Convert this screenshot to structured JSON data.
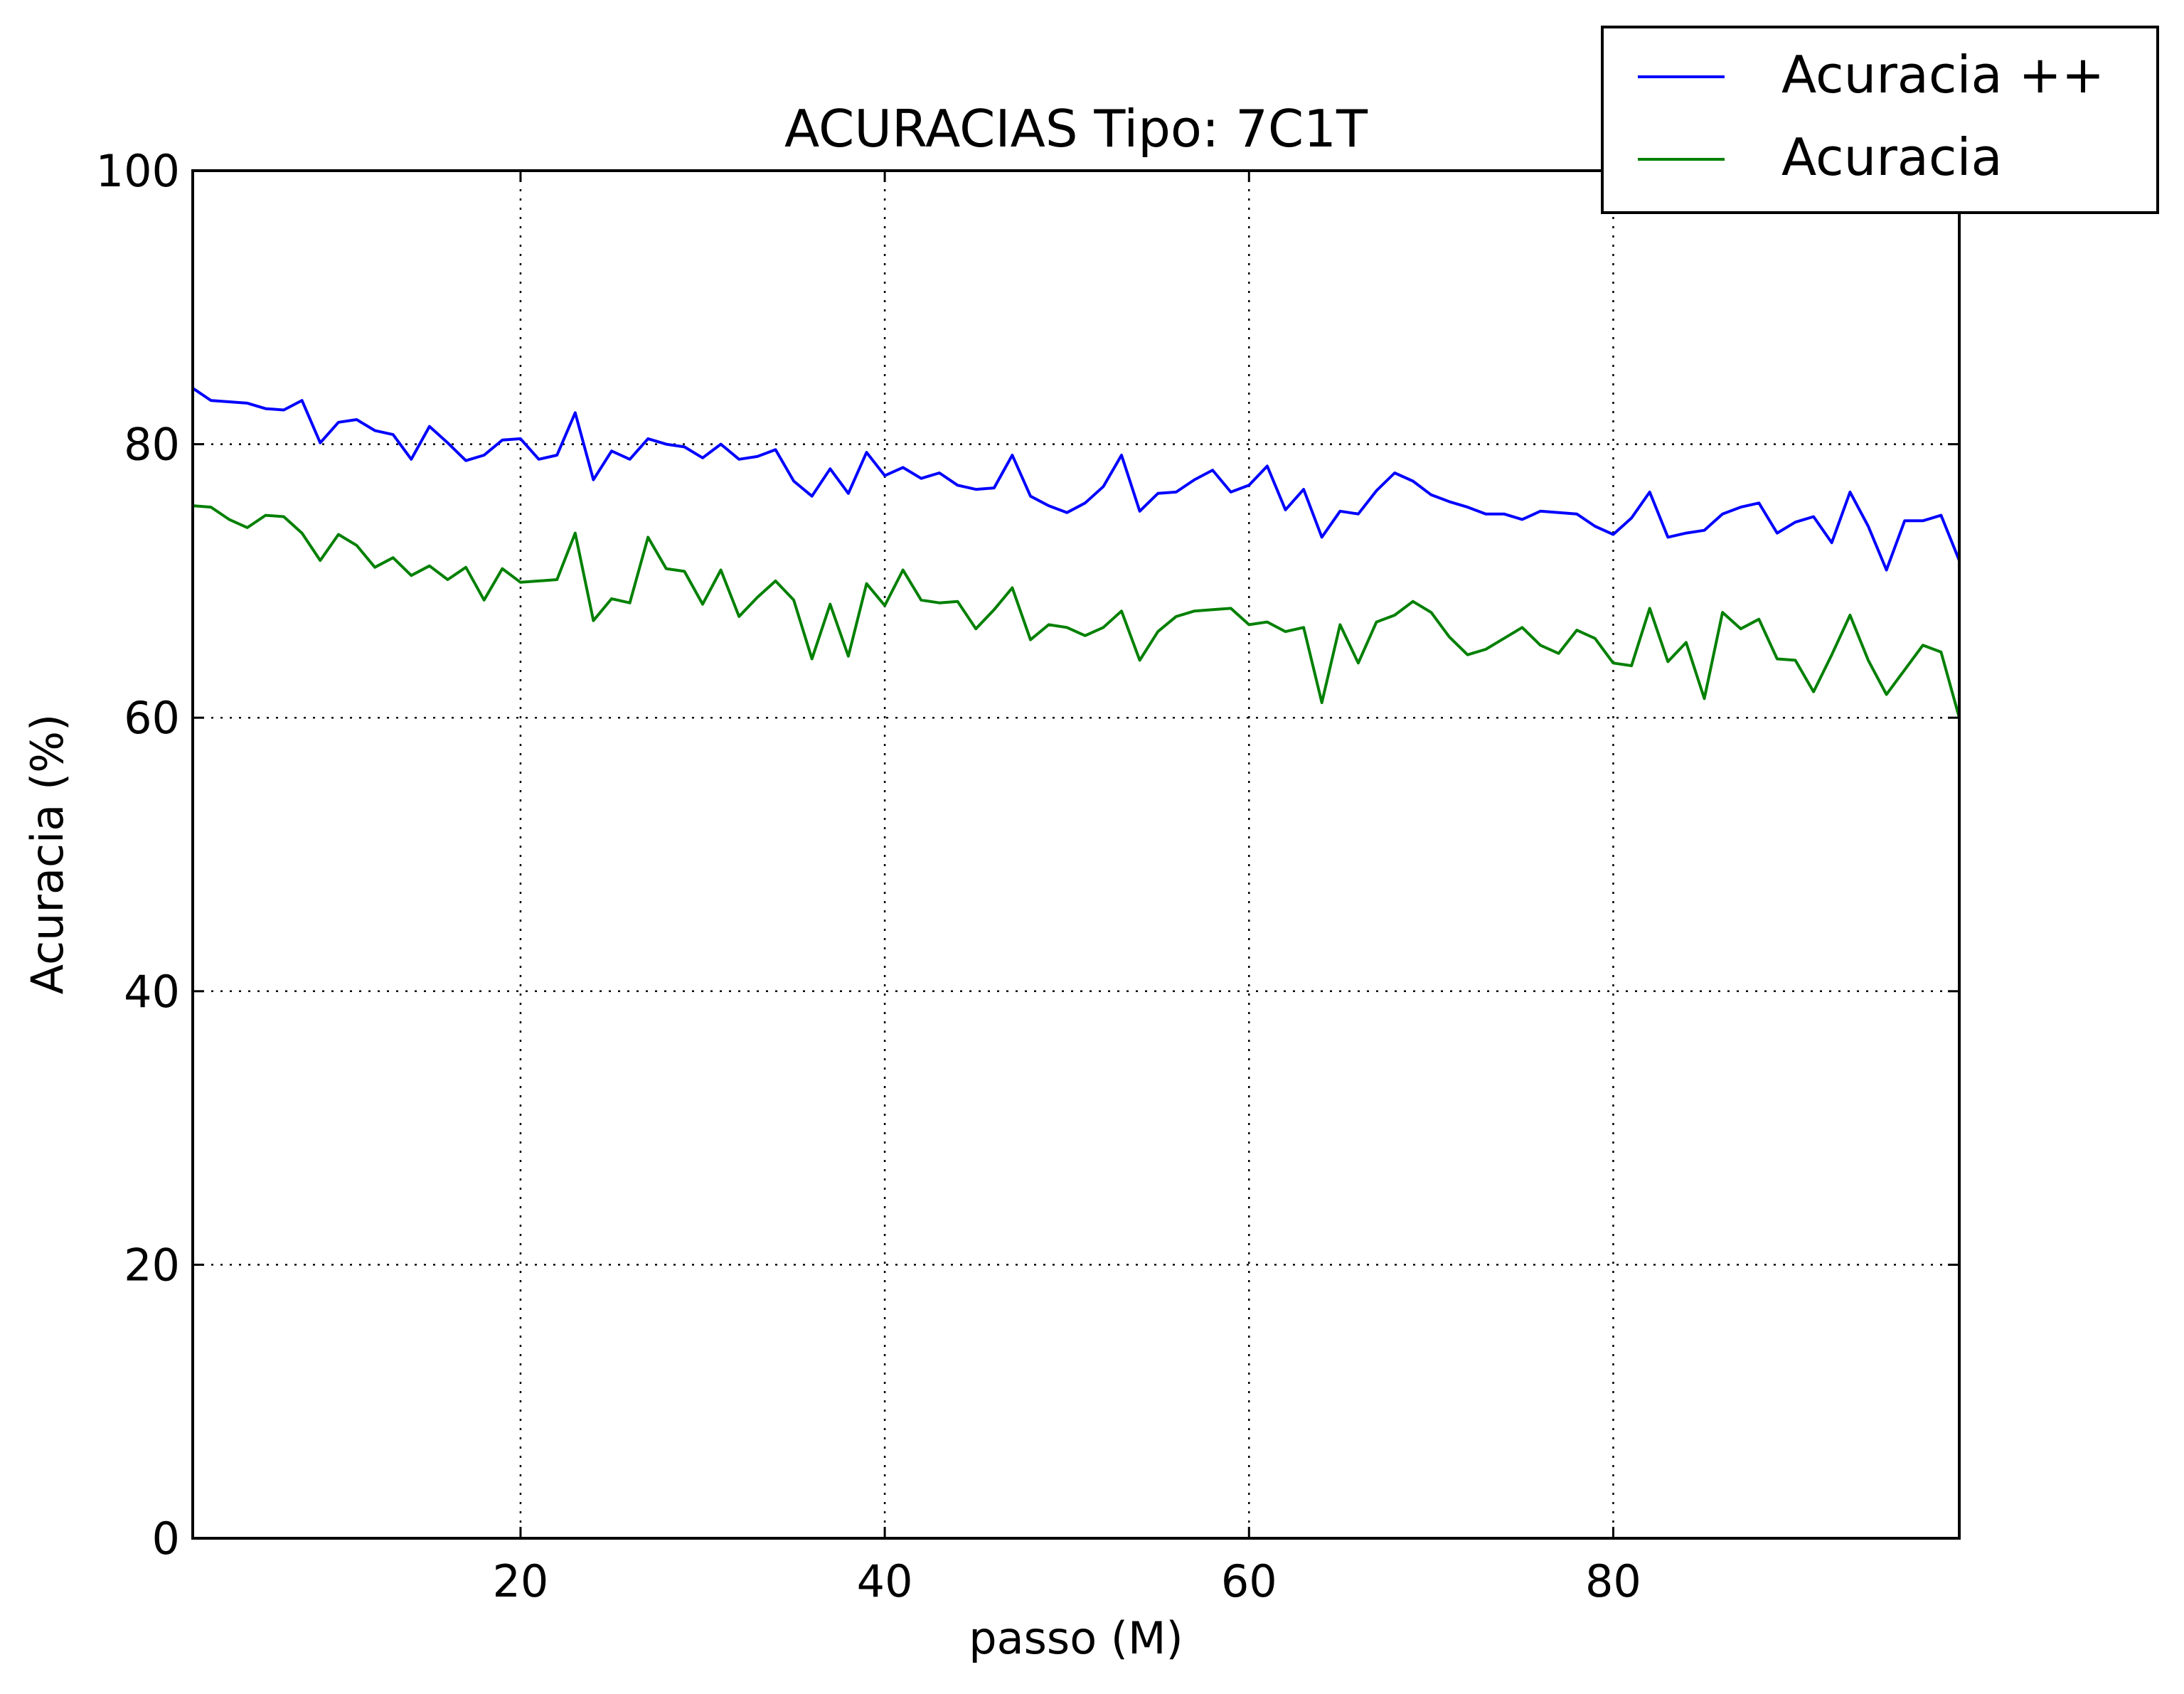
{
  "chart_data": {
    "type": "line",
    "title": "ACURACIAS Tipo: 7C1T",
    "xlabel": "passo (M)",
    "ylabel": "Acuracia (%)",
    "xlim": [
      2,
      99
    ],
    "ylim": [
      0,
      100
    ],
    "xticks": [
      20,
      40,
      60,
      80
    ],
    "yticks": [
      0,
      20,
      40,
      60,
      80,
      100
    ],
    "grid": true,
    "legend_position": "top-right, outside plot",
    "x": [
      2,
      3,
      4,
      5,
      6,
      7,
      8,
      9,
      10,
      11,
      12,
      13,
      14,
      15,
      16,
      17,
      18,
      19,
      20,
      21,
      22,
      23,
      24,
      25,
      26,
      27,
      28,
      29,
      30,
      31,
      32,
      33,
      34,
      35,
      36,
      37,
      38,
      39,
      40,
      41,
      42,
      43,
      44,
      45,
      46,
      47,
      48,
      49,
      50,
      51,
      52,
      53,
      54,
      55,
      56,
      57,
      58,
      59,
      60,
      61,
      62,
      63,
      64,
      65,
      66,
      67,
      68,
      69,
      70,
      71,
      72,
      73,
      74,
      75,
      76,
      77,
      78,
      79,
      80,
      81,
      82,
      83,
      84,
      85,
      86,
      87,
      88,
      89,
      90,
      91,
      92,
      93,
      94,
      95,
      96,
      97,
      98,
      99
    ],
    "series": [
      {
        "name": "Acuracia ++",
        "color": "#0000ff",
        "values": [
          84.1,
          83.2,
          83.1,
          83.0,
          82.6,
          82.5,
          83.2,
          80.1,
          81.6,
          81.8,
          81.0,
          80.7,
          78.9,
          81.3,
          80.1,
          78.8,
          79.2,
          80.3,
          80.4,
          78.9,
          79.2,
          82.3,
          77.4,
          79.5,
          78.9,
          80.4,
          80.0,
          79.8,
          79.0,
          80.0,
          78.9,
          79.1,
          79.6,
          77.3,
          76.2,
          78.2,
          76.4,
          79.4,
          77.7,
          78.3,
          77.5,
          77.9,
          77.0,
          76.7,
          76.8,
          79.2,
          76.2,
          75.5,
          75.0,
          75.7,
          76.9,
          79.2,
          75.1,
          76.4,
          76.5,
          77.4,
          78.1,
          76.5,
          77.0,
          78.4,
          75.2,
          76.7,
          73.2,
          75.1,
          74.9,
          76.6,
          77.9,
          77.3,
          76.3,
          75.8,
          75.4,
          74.9,
          74.9,
          74.5,
          75.1,
          75.0,
          74.9,
          74.0,
          73.4,
          74.6,
          76.5,
          73.2,
          73.5,
          73.7,
          74.9,
          75.4,
          75.7,
          73.5,
          74.3,
          74.7,
          72.8,
          76.5,
          74.0,
          70.8,
          74.4,
          74.4,
          74.8,
          71.5
        ]
      },
      {
        "name": "Acuracia",
        "color": "#008000",
        "values": [
          75.5,
          75.4,
          74.5,
          73.9,
          74.8,
          74.7,
          73.5,
          71.5,
          73.4,
          72.6,
          71.0,
          71.7,
          70.4,
          71.1,
          70.1,
          71.0,
          68.6,
          70.9,
          69.9,
          70.0,
          70.1,
          73.5,
          67.1,
          68.7,
          68.4,
          73.2,
          70.9,
          70.7,
          68.3,
          70.8,
          67.4,
          68.8,
          70.0,
          68.6,
          64.3,
          68.3,
          64.5,
          69.8,
          68.2,
          70.8,
          68.6,
          68.4,
          68.5,
          66.5,
          67.9,
          69.5,
          65.7,
          66.8,
          66.6,
          66.0,
          66.6,
          67.8,
          64.2,
          66.3,
          67.4,
          67.8,
          67.9,
          68.0,
          66.8,
          67.0,
          66.3,
          66.6,
          61.1,
          66.8,
          64.0,
          67.0,
          67.5,
          68.5,
          67.7,
          65.9,
          64.6,
          65.0,
          65.8,
          66.6,
          65.3,
          64.7,
          66.4,
          65.8,
          64.0,
          63.8,
          68.0,
          64.1,
          65.5,
          61.4,
          67.7,
          66.5,
          67.2,
          64.3,
          64.2,
          61.9,
          64.6,
          67.5,
          64.2,
          61.7,
          63.5,
          65.3,
          64.8,
          60.0
        ]
      }
    ]
  }
}
